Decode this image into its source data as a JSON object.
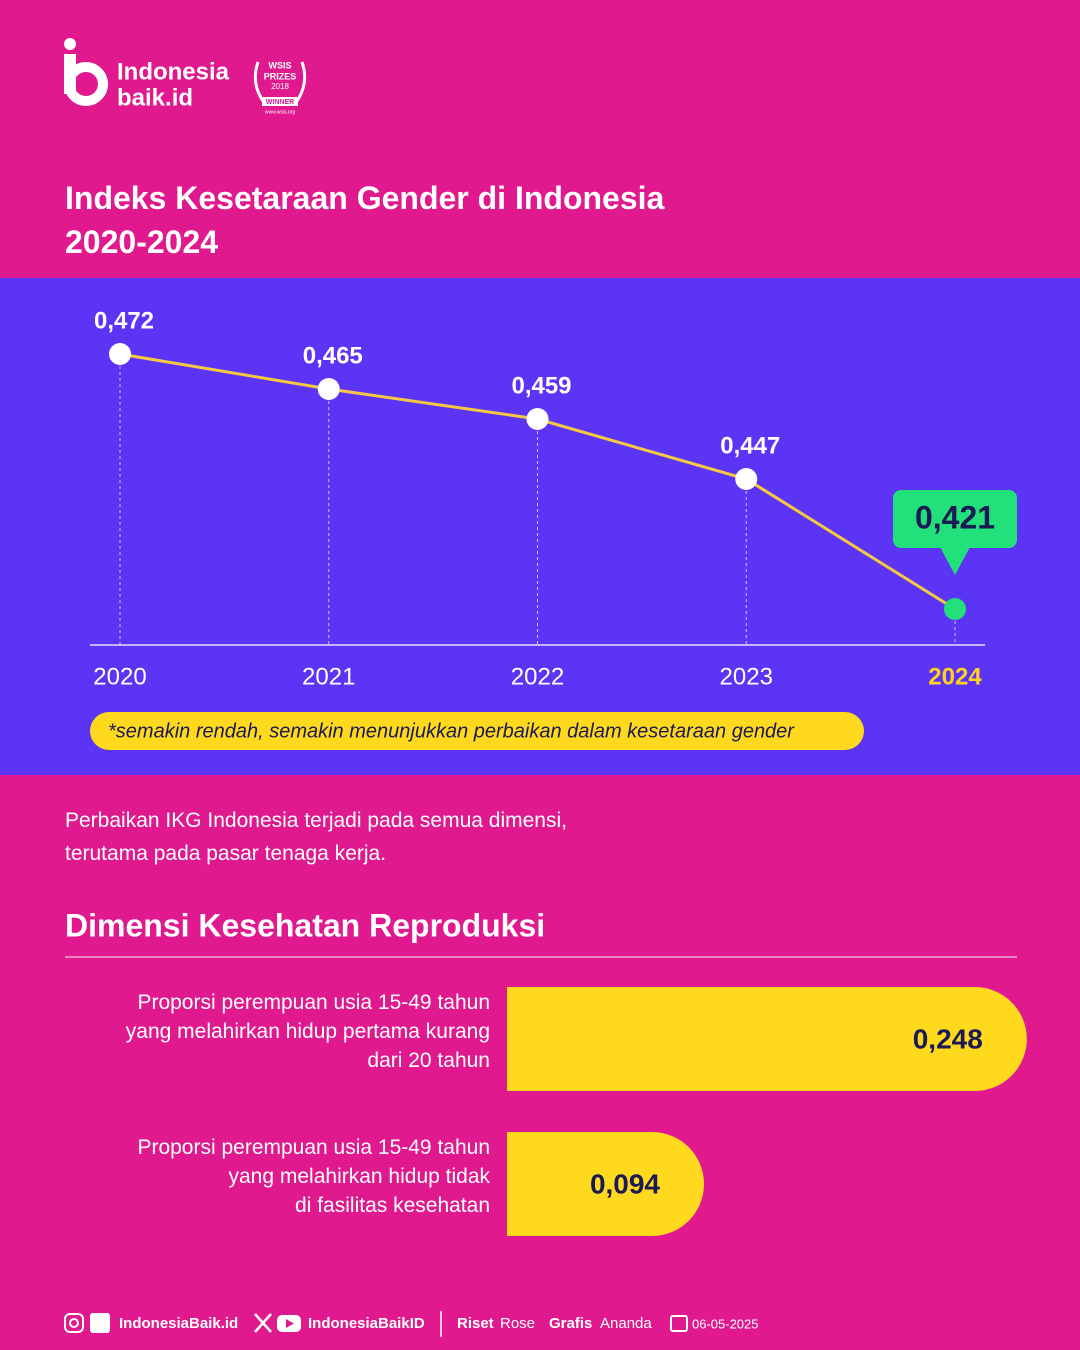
{
  "brand": {
    "name_top": "Indonesia",
    "name_bottom": "baik.id",
    "award": [
      "WSIS",
      "PRIZES",
      "2018",
      "WINNER",
      "www.wsis.org"
    ]
  },
  "title": "Indeks Kesetaraan Gender di Indonesia\n2020-2024",
  "chart_data": [
    {
      "type": "line",
      "categories": [
        "2020",
        "2021",
        "2022",
        "2023",
        "2024"
      ],
      "values": [
        0.472,
        0.465,
        0.459,
        0.447,
        0.421
      ],
      "value_labels": [
        "0,472",
        "0,465",
        "0,459",
        "0,447",
        "0,421"
      ],
      "color": "#f5c842",
      "marker_colors": [
        "#ffffff",
        "#ffffff",
        "#ffffff",
        "#ffffff",
        "#22e07a"
      ],
      "category_colors": [
        "#ffffff",
        "#ffffff",
        "#ffffff",
        "#ffffff",
        "#ffd21f"
      ],
      "ylim": [
        0.41,
        0.48
      ],
      "note": "*semakin rendah, semakin menunjukkan perbaikan dalam kesetaraan gender"
    },
    {
      "type": "barh",
      "title": "Dimensi Kesehatan Reproduksi",
      "categories": [
        "Proporsi perempuan usia 15-49 tahun\nyang melahirkan hidup pertama kurang\ndari 20 tahun",
        "Proporsi perempuan usia 15-49 tahun\nyang melahirkan hidup tidak\ndi fasilitas kesehatan"
      ],
      "values": [
        0.248,
        0.094
      ],
      "value_labels": [
        "0,248",
        "0,094"
      ],
      "color": "#ffd91e",
      "xlim": [
        0,
        0.25
      ]
    }
  ],
  "paragraph": "Perbaikan IKG Indonesia terjadi pada semua dimensi,\nterutama pada pasar tenaga kerja.",
  "footer": {
    "social1": "IndonesiaBaik.id",
    "social2": "IndonesiaBaikID",
    "riset_label": "Riset",
    "riset_name": "Rose",
    "grafis_label": "Grafis",
    "grafis_name": "Ananda",
    "date": "06-05-2025"
  }
}
